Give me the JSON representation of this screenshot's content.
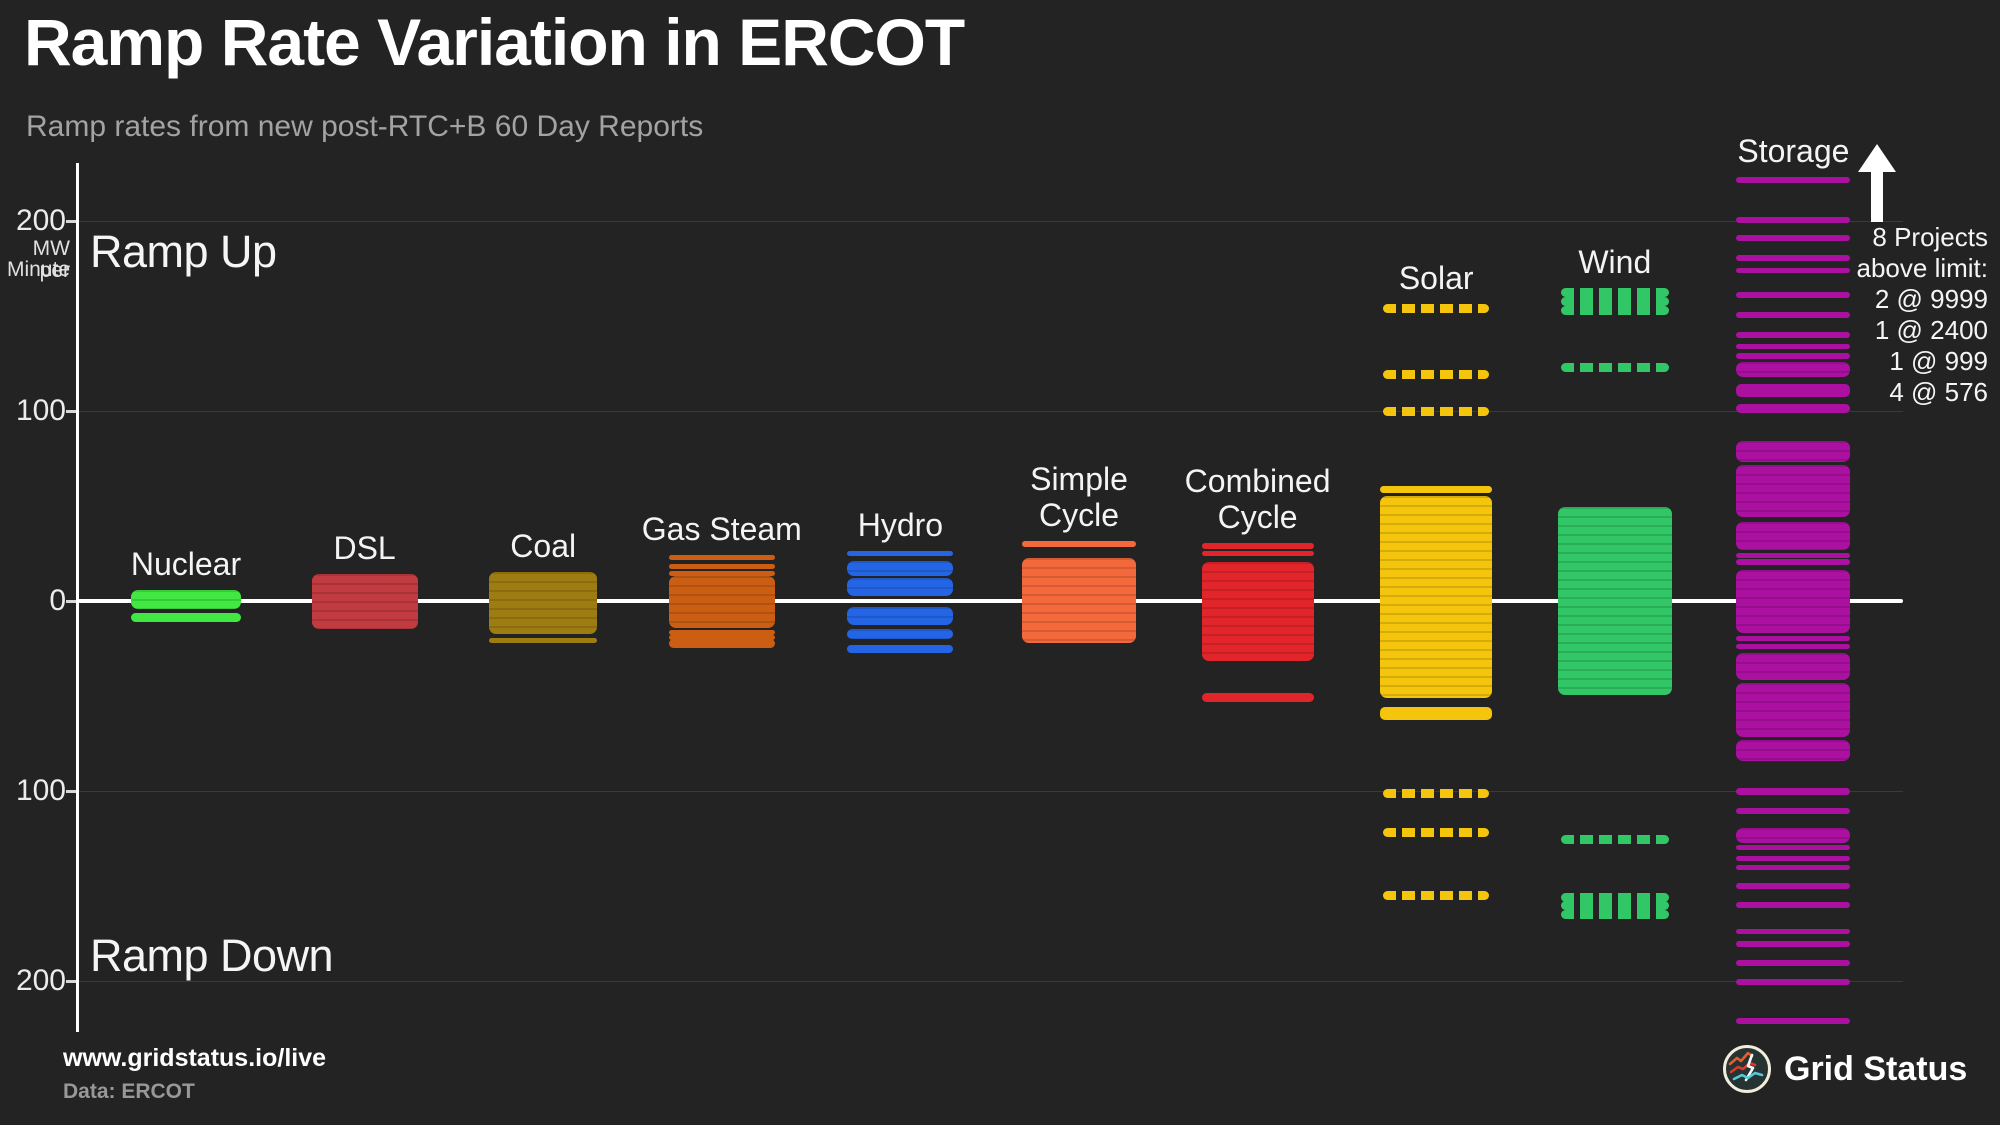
{
  "header": {
    "title": "Ramp Rate Variation in ERCOT",
    "subtitle": "Ramp rates from new post-RTC+B 60 Day Reports"
  },
  "axis": {
    "unit_line1": "MW per",
    "unit_line2": "Minute",
    "ramp_up": "Ramp Up",
    "ramp_down": "Ramp Down"
  },
  "annotation": {
    "arrow_icon": "up-arrow",
    "lines": [
      "8 Projects",
      "above limit:",
      "2 @ 9999",
      "1 @ 2400",
      "1 @ 999",
      "4 @ 576"
    ]
  },
  "footer": {
    "site": "www.gridstatus.io/live",
    "source": "Data: ERCOT",
    "brand": "Grid Status"
  },
  "colors": {
    "background": "#232323",
    "zero_line": "#ffffff",
    "gridline": "#3a3a3a",
    "subtitle": "#a3a3a3"
  },
  "chart_data": {
    "type": "strip",
    "title": "Ramp Rate Variation in ERCOT",
    "ylabel": "MW per Minute",
    "ylim": [
      -235,
      235
    ],
    "yticks": [
      200,
      100,
      0,
      -100,
      -200
    ],
    "ytick_labels": [
      "200",
      "100",
      "0",
      "100",
      "200"
    ],
    "gridlines": [
      200,
      100,
      -100,
      -200
    ],
    "grid": "faint-horizontal",
    "legend_position": "none",
    "series": [
      {
        "name": "Nuclear",
        "label_lines": [
          "Nuclear"
        ],
        "color": "#41e841",
        "band_width": 110,
        "segments": [
          {
            "hi": 6,
            "lo": -4,
            "style": "block"
          },
          {
            "hi": -6.5,
            "lo": -11,
            "style": "dash"
          }
        ]
      },
      {
        "name": "DSL",
        "label_lines": [
          "DSL"
        ],
        "color": "#c23b40",
        "band_width": 106,
        "segments": [
          {
            "hi": 14,
            "lo": -15,
            "style": "block"
          }
        ]
      },
      {
        "name": "Coal",
        "label_lines": [
          "Coal"
        ],
        "color": "#9d7d12",
        "band_width": 108,
        "segments": [
          {
            "hi": 15.5,
            "lo": -17.5,
            "style": "block"
          },
          {
            "hi": -19.5,
            "lo": -22,
            "style": "dash"
          }
        ]
      },
      {
        "name": "Gas Steam",
        "label_lines": [
          "Gas Steam"
        ],
        "color": "#cc5e13",
        "band_width": 106,
        "segments": [
          {
            "hi": 24,
            "lo": 22,
            "style": "dash"
          },
          {
            "hi": 19.5,
            "lo": 17,
            "style": "dash"
          },
          {
            "hi": 16,
            "lo": 14,
            "style": "dash"
          },
          {
            "hi": 13,
            "lo": -14,
            "style": "block"
          },
          {
            "hi": -15,
            "lo": -17,
            "style": "dash"
          },
          {
            "hi": -18,
            "lo": -19,
            "style": "dash"
          },
          {
            "hi": -20,
            "lo": -24.5,
            "style": "dash"
          }
        ]
      },
      {
        "name": "Hydro",
        "label_lines": [
          "Hydro"
        ],
        "color": "#2465e6",
        "band_width": 106,
        "segments": [
          {
            "hi": 26.5,
            "lo": 23.5,
            "style": "dash"
          },
          {
            "hi": 21,
            "lo": 13,
            "style": "block"
          },
          {
            "hi": 12,
            "lo": 2.5,
            "style": "block"
          },
          {
            "hi": -3,
            "lo": -12.5,
            "style": "block"
          },
          {
            "hi": -14.5,
            "lo": -20,
            "style": "block"
          },
          {
            "hi": -23,
            "lo": -27.5,
            "style": "dash"
          }
        ]
      },
      {
        "name": "Simple Cycle",
        "label_lines": [
          "Simple",
          "Cycle"
        ],
        "color": "#f4693c",
        "band_width": 114,
        "segments": [
          {
            "hi": 31.5,
            "lo": 28.5,
            "style": "dash"
          },
          {
            "hi": 22.5,
            "lo": -22,
            "style": "block"
          }
        ]
      },
      {
        "name": "Combined Cycle",
        "label_lines": [
          "Combined",
          "Cycle"
        ],
        "color": "#e2252b",
        "band_width": 112,
        "segments": [
          {
            "hi": 30.5,
            "lo": 27.5,
            "style": "dash"
          },
          {
            "hi": 26.5,
            "lo": 23.5,
            "style": "dash"
          },
          {
            "hi": 20.5,
            "lo": -31.5,
            "style": "block"
          },
          {
            "hi": -48.5,
            "lo": -53,
            "style": "dash"
          }
        ]
      },
      {
        "name": "Solar",
        "label_lines": [
          "Solar"
        ],
        "color": "#f4c50c",
        "band_width": 112,
        "segments": [
          {
            "hi": 156.5,
            "lo": 153.5,
            "style": "dots"
          },
          {
            "hi": 121.5,
            "lo": 118.5,
            "style": "dots"
          },
          {
            "hi": 102,
            "lo": 99,
            "style": "dots"
          },
          {
            "hi": 60.5,
            "lo": 57,
            "style": "dash"
          },
          {
            "hi": 55.5,
            "lo": -51,
            "style": "block"
          },
          {
            "hi": -56,
            "lo": -62.5,
            "style": "dash"
          },
          {
            "hi": -99,
            "lo": -102,
            "style": "dots"
          },
          {
            "hi": -119.5,
            "lo": -122.5,
            "style": "dots"
          },
          {
            "hi": -152.5,
            "lo": -155.5,
            "style": "dots"
          }
        ]
      },
      {
        "name": "Wind",
        "label_lines": [
          "Wind"
        ],
        "color": "#31c666",
        "band_width": 114,
        "segments": [
          {
            "hi": 164.5,
            "lo": 161.5,
            "style": "dots"
          },
          {
            "hi": 160,
            "lo": 157,
            "style": "dots"
          },
          {
            "hi": 155.5,
            "lo": 152.5,
            "style": "dots"
          },
          {
            "hi": 125.5,
            "lo": 122.5,
            "style": "dots"
          },
          {
            "hi": 49.5,
            "lo": -49.5,
            "style": "block"
          },
          {
            "hi": -123,
            "lo": -126,
            "style": "dots"
          },
          {
            "hi": -153.5,
            "lo": -156.5,
            "style": "dots"
          },
          {
            "hi": -158,
            "lo": -161,
            "style": "dots"
          },
          {
            "hi": -162.5,
            "lo": -165.5,
            "style": "dots"
          }
        ]
      },
      {
        "name": "Storage",
        "label_lines": [
          "Storage"
        ],
        "color": "#ab10a0",
        "band_width": 114,
        "segments": [
          {
            "hi": 223,
            "lo": 220,
            "style": "dash"
          },
          {
            "hi": 202,
            "lo": 199,
            "style": "dash"
          },
          {
            "hi": 192.5,
            "lo": 189.5,
            "style": "dash"
          },
          {
            "hi": 182,
            "lo": 179,
            "style": "dash"
          },
          {
            "hi": 175.5,
            "lo": 172.5,
            "style": "dash"
          },
          {
            "hi": 162.5,
            "lo": 159.5,
            "style": "dash"
          },
          {
            "hi": 152,
            "lo": 149,
            "style": "dash"
          },
          {
            "hi": 141.5,
            "lo": 138.5,
            "style": "dash"
          },
          {
            "hi": 135.5,
            "lo": 132.5,
            "style": "dash"
          },
          {
            "hi": 130.5,
            "lo": 127.5,
            "style": "dash"
          },
          {
            "hi": 126,
            "lo": 118,
            "style": "block"
          },
          {
            "hi": 114,
            "lo": 107.5,
            "style": "dash"
          },
          {
            "hi": 103.5,
            "lo": 99,
            "style": "dash"
          },
          {
            "hi": 84,
            "lo": 73,
            "style": "block"
          },
          {
            "hi": 71.5,
            "lo": 44,
            "style": "block"
          },
          {
            "hi": 41.5,
            "lo": 27,
            "style": "block"
          },
          {
            "hi": 25.5,
            "lo": 23,
            "style": "dash"
          },
          {
            "hi": 22,
            "lo": 19,
            "style": "dash"
          },
          {
            "hi": 16.5,
            "lo": -17,
            "style": "block"
          },
          {
            "hi": -18.5,
            "lo": -21,
            "style": "dash"
          },
          {
            "hi": -22.5,
            "lo": -25,
            "style": "dash"
          },
          {
            "hi": -27.5,
            "lo": -41.5,
            "style": "block"
          },
          {
            "hi": -43,
            "lo": -71.5,
            "style": "block"
          },
          {
            "hi": -73,
            "lo": -84,
            "style": "block"
          },
          {
            "hi": -98.5,
            "lo": -102,
            "style": "dash"
          },
          {
            "hi": -109,
            "lo": -112,
            "style": "dash"
          },
          {
            "hi": -119.5,
            "lo": -127.5,
            "style": "block"
          },
          {
            "hi": -128.5,
            "lo": -131,
            "style": "dash"
          },
          {
            "hi": -134,
            "lo": -136.5,
            "style": "dash"
          },
          {
            "hi": -139,
            "lo": -141.5,
            "style": "dash"
          },
          {
            "hi": -148.5,
            "lo": -151.5,
            "style": "dash"
          },
          {
            "hi": -158.5,
            "lo": -161.5,
            "style": "dash"
          },
          {
            "hi": -172.5,
            "lo": -175.5,
            "style": "dash"
          },
          {
            "hi": -179,
            "lo": -182,
            "style": "dash"
          },
          {
            "hi": -189,
            "lo": -192,
            "style": "dash"
          },
          {
            "hi": -199,
            "lo": -202,
            "style": "dash"
          },
          {
            "hi": -219.5,
            "lo": -222.5,
            "style": "dash"
          }
        ]
      }
    ]
  }
}
